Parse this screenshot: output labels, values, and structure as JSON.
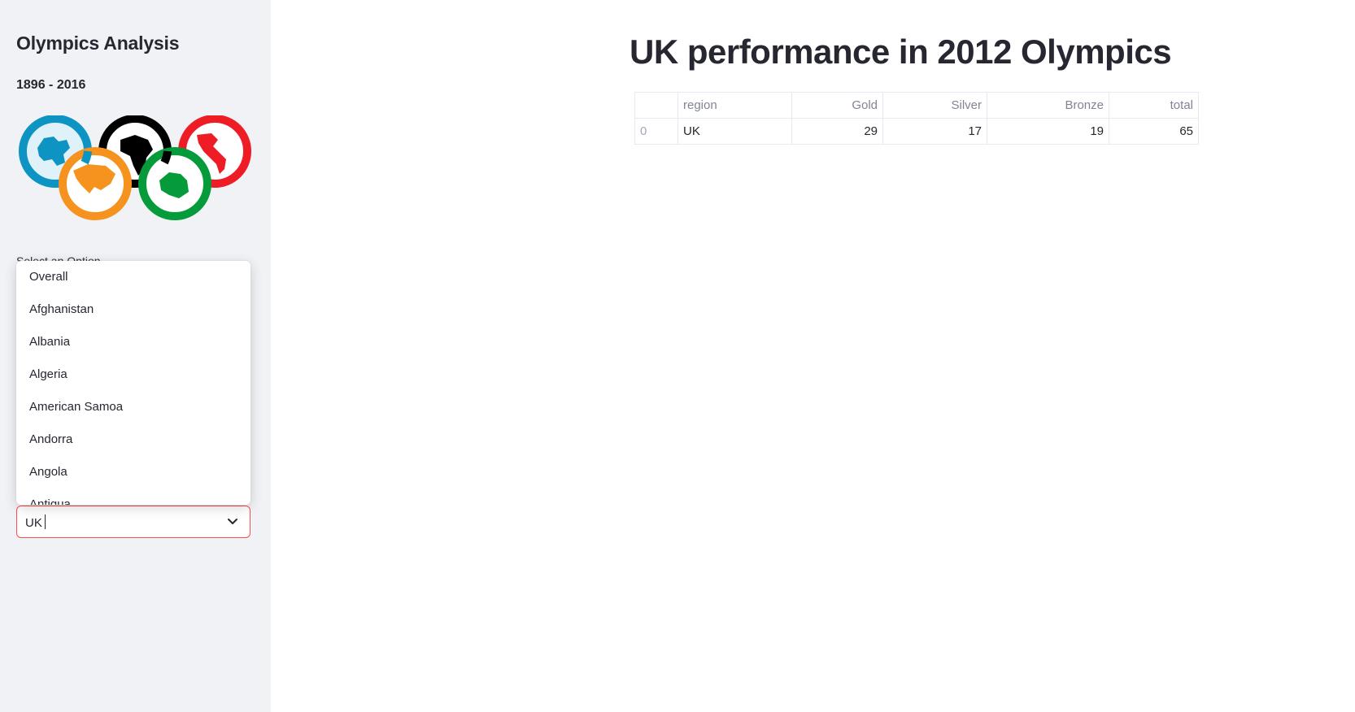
{
  "sidebar": {
    "title": "Olympics Analysis",
    "subtitle": "1896 - 2016",
    "logo": "olympic-rings-world-map-logo",
    "select": {
      "label": "Select an Option",
      "value": "UK",
      "icon": "chevron-down-icon",
      "options": [
        "Overall",
        "Afghanistan",
        "Albania",
        "Algeria",
        "American Samoa",
        "Andorra",
        "Angola",
        "Antigua"
      ]
    }
  },
  "main": {
    "title": "UK performance in 2012 Olympics",
    "table": {
      "headers": [
        "",
        "region",
        "Gold",
        "Silver",
        "Bronze",
        "total"
      ],
      "rows": [
        {
          "index": "0",
          "region": "UK",
          "gold": "29",
          "silver": "17",
          "bronze": "19",
          "total": "65"
        }
      ]
    }
  },
  "colors": {
    "sidebar_bg": "#f0f2f6",
    "accent": "#ff4b4b",
    "ring_blue": "#0d94c2",
    "ring_black": "#000000",
    "ring_red": "#ee1c25",
    "ring_orange": "#f6921e",
    "ring_green": "#069b3a"
  }
}
